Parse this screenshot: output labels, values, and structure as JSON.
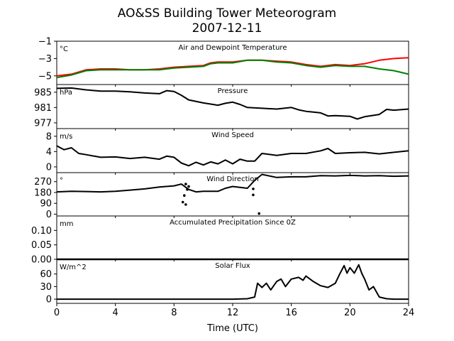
{
  "chart_data": {
    "type": "line",
    "title": "AO&SS Building Tower Meteorogram",
    "subtitle": "2007-12-11",
    "xlabel": "Time (UTC)",
    "x_range": [
      0,
      24
    ],
    "x_ticks": [
      0,
      4,
      8,
      12,
      16,
      20,
      24
    ],
    "grid": false,
    "panels": [
      {
        "key": "temp",
        "title": "Air and Dewpoint Temperature",
        "unit": "°C",
        "ylim": [
          -6.0,
          -1.0
        ],
        "y_ticks": [
          -5,
          -3,
          -1
        ],
        "y_tick_labels": [
          "−5",
          "−3",
          "−1"
        ],
        "series": [
          {
            "color": "#ff0000",
            "points": [
              [
                0,
                -5.0
              ],
              [
                1,
                -4.8
              ],
              [
                2,
                -4.3
              ],
              [
                3,
                -4.2
              ],
              [
                4,
                -4.2
              ],
              [
                5,
                -4.3
              ],
              [
                6,
                -4.3
              ],
              [
                7,
                -4.2
              ],
              [
                8,
                -4.0
              ],
              [
                9,
                -3.9
              ],
              [
                10,
                -3.8
              ],
              [
                10.5,
                -3.5
              ],
              [
                11,
                -3.4
              ],
              [
                12,
                -3.4
              ],
              [
                13,
                -3.2
              ],
              [
                14,
                -3.2
              ],
              [
                15,
                -3.3
              ],
              [
                16,
                -3.4
              ],
              [
                17,
                -3.7
              ],
              [
                18,
                -3.9
              ],
              [
                19,
                -3.7
              ],
              [
                20,
                -3.8
              ],
              [
                21,
                -3.6
              ],
              [
                22,
                -3.2
              ],
              [
                23,
                -3.0
              ],
              [
                24,
                -2.9
              ]
            ]
          },
          {
            "color": "#008000",
            "points": [
              [
                0,
                -5.2
              ],
              [
                1,
                -4.9
              ],
              [
                2,
                -4.4
              ],
              [
                3,
                -4.3
              ],
              [
                4,
                -4.3
              ],
              [
                5,
                -4.3
              ],
              [
                6,
                -4.3
              ],
              [
                7,
                -4.3
              ],
              [
                8,
                -4.1
              ],
              [
                9,
                -4.0
              ],
              [
                10,
                -3.9
              ],
              [
                10.5,
                -3.6
              ],
              [
                11,
                -3.5
              ],
              [
                12,
                -3.5
              ],
              [
                13,
                -3.2
              ],
              [
                14,
                -3.2
              ],
              [
                15,
                -3.4
              ],
              [
                16,
                -3.5
              ],
              [
                17,
                -3.8
              ],
              [
                18,
                -4.0
              ],
              [
                19,
                -3.8
              ],
              [
                20,
                -3.9
              ],
              [
                21,
                -3.9
              ],
              [
                22,
                -4.2
              ],
              [
                23,
                -4.4
              ],
              [
                24,
                -4.8
              ]
            ]
          }
        ]
      },
      {
        "key": "pressure",
        "title": "Pressure",
        "unit": "hPa",
        "ylim": [
          975.5,
          987.0
        ],
        "y_ticks": [
          977,
          981,
          985
        ],
        "y_tick_labels": [
          "977",
          "981",
          "985"
        ],
        "series": [
          {
            "color": "#000000",
            "points": [
              [
                0,
                986.0
              ],
              [
                1,
                986.1
              ],
              [
                2,
                985.6
              ],
              [
                3,
                985.3
              ],
              [
                4,
                985.3
              ],
              [
                5,
                985.1
              ],
              [
                6,
                984.8
              ],
              [
                7,
                984.6
              ],
              [
                7.5,
                985.4
              ],
              [
                8,
                985.2
              ],
              [
                8.5,
                984.2
              ],
              [
                9,
                983.0
              ],
              [
                10,
                982.2
              ],
              [
                11,
                981.6
              ],
              [
                11.5,
                982.1
              ],
              [
                12,
                982.4
              ],
              [
                12.5,
                981.8
              ],
              [
                13,
                981.0
              ],
              [
                14,
                980.8
              ],
              [
                15,
                980.6
              ],
              [
                16,
                981.0
              ],
              [
                16.5,
                980.4
              ],
              [
                17,
                980.0
              ],
              [
                17.5,
                979.8
              ],
              [
                18,
                979.6
              ],
              [
                18.5,
                978.8
              ],
              [
                19,
                978.9
              ],
              [
                20,
                978.7
              ],
              [
                20.5,
                978.0
              ],
              [
                21,
                978.6
              ],
              [
                22,
                979.2
              ],
              [
                22.5,
                980.5
              ],
              [
                23,
                980.3
              ],
              [
                24,
                980.6
              ]
            ]
          }
        ]
      },
      {
        "key": "wind_speed",
        "title": "Wind Speed",
        "unit": "m/s",
        "ylim": [
          -1.5,
          10.0
        ],
        "y_ticks": [
          0,
          4,
          8
        ],
        "y_tick_labels": [
          "0",
          "4",
          "8"
        ],
        "series": [
          {
            "color": "#000000",
            "points": [
              [
                0,
                5.5
              ],
              [
                0.5,
                4.5
              ],
              [
                1,
                5.0
              ],
              [
                1.5,
                3.5
              ],
              [
                2,
                3.2
              ],
              [
                3,
                2.5
              ],
              [
                4,
                2.6
              ],
              [
                5,
                2.2
              ],
              [
                6,
                2.5
              ],
              [
                7,
                2.0
              ],
              [
                7.5,
                2.8
              ],
              [
                8,
                2.5
              ],
              [
                8.5,
                1.0
              ],
              [
                9,
                0.3
              ],
              [
                9.5,
                1.2
              ],
              [
                10,
                0.5
              ],
              [
                10.5,
                1.3
              ],
              [
                11,
                0.8
              ],
              [
                11.5,
                1.8
              ],
              [
                12,
                0.8
              ],
              [
                12.5,
                2.0
              ],
              [
                13,
                1.5
              ],
              [
                13.5,
                1.5
              ],
              [
                14,
                3.5
              ],
              [
                15,
                3.0
              ],
              [
                16,
                3.5
              ],
              [
                17,
                3.5
              ],
              [
                18,
                4.2
              ],
              [
                18.5,
                4.8
              ],
              [
                19,
                3.5
              ],
              [
                20,
                3.7
              ],
              [
                21,
                3.8
              ],
              [
                22,
                3.4
              ],
              [
                23,
                3.8
              ],
              [
                24,
                4.2
              ]
            ]
          }
        ]
      },
      {
        "key": "wind_direction",
        "title": "Wind Direction",
        "unit": "°",
        "ylim": [
          -15,
          345
        ],
        "y_ticks": [
          0,
          90,
          180,
          270
        ],
        "y_tick_labels": [
          "0",
          "90",
          "180",
          "270"
        ],
        "series": [
          {
            "color": "#000000",
            "points": [
              [
                0,
                185
              ],
              [
                1,
                190
              ],
              [
                2,
                188
              ],
              [
                3,
                185
              ],
              [
                4,
                190
              ],
              [
                5,
                200
              ],
              [
                6,
                210
              ],
              [
                7,
                225
              ],
              [
                8,
                235
              ],
              [
                8.5,
                250
              ],
              [
                9,
                205
              ],
              [
                9.5,
                185
              ],
              [
                10,
                190
              ],
              [
                11,
                190
              ],
              [
                11.5,
                215
              ],
              [
                12,
                230
              ],
              [
                13,
                215
              ],
              [
                13.5,
                280
              ],
              [
                14,
                330
              ],
              [
                15,
                305
              ],
              [
                16,
                310
              ],
              [
                17,
                310
              ],
              [
                18,
                320
              ],
              [
                19,
                318
              ],
              [
                20,
                322
              ],
              [
                21,
                318
              ],
              [
                22,
                320
              ],
              [
                23,
                315
              ],
              [
                24,
                318
              ]
            ]
          }
        ],
        "scatter": [
          [
            8.6,
            100
          ],
          [
            8.8,
            80
          ],
          [
            8.7,
            155
          ],
          [
            8.9,
            205
          ],
          [
            9.0,
            230
          ],
          [
            8.8,
            250
          ],
          [
            13.4,
            160
          ],
          [
            13.4,
            210
          ],
          [
            13.8,
            5
          ]
        ]
      },
      {
        "key": "precip",
        "title": "Accumulated Precipitation Since 0Z",
        "unit": "mm",
        "ylim": [
          0.0,
          0.15
        ],
        "y_ticks": [
          0.0,
          0.05,
          0.1
        ],
        "y_tick_labels": [
          "0.00",
          "0.05",
          "0.10"
        ],
        "series": [
          {
            "color": "#000000",
            "points": [
              [
                0,
                0.0
              ],
              [
                24,
                0.0
              ]
            ]
          }
        ]
      },
      {
        "key": "solar",
        "title": "Solar Flux",
        "unit": "W/m^2",
        "ylim": [
          -10,
          95
        ],
        "y_ticks": [
          0,
          30,
          60
        ],
        "y_tick_labels": [
          "0",
          "30",
          "60"
        ],
        "series": [
          {
            "color": "#000000",
            "points": [
              [
                0,
                0
              ],
              [
                12,
                0
              ],
              [
                13,
                1
              ],
              [
                13.5,
                5
              ],
              [
                13.7,
                38
              ],
              [
                14,
                28
              ],
              [
                14.3,
                38
              ],
              [
                14.6,
                22
              ],
              [
                15,
                42
              ],
              [
                15.3,
                48
              ],
              [
                15.6,
                30
              ],
              [
                16,
                48
              ],
              [
                16.5,
                52
              ],
              [
                16.8,
                45
              ],
              [
                17,
                55
              ],
              [
                17.5,
                42
              ],
              [
                18,
                32
              ],
              [
                18.5,
                28
              ],
              [
                19,
                38
              ],
              [
                19.3,
                60
              ],
              [
                19.6,
                80
              ],
              [
                19.8,
                62
              ],
              [
                20,
                75
              ],
              [
                20.3,
                62
              ],
              [
                20.6,
                82
              ],
              [
                20.8,
                62
              ],
              [
                21,
                48
              ],
              [
                21.3,
                22
              ],
              [
                21.6,
                30
              ],
              [
                22,
                5
              ],
              [
                22.5,
                1
              ],
              [
                23,
                0
              ],
              [
                24,
                0
              ]
            ]
          }
        ]
      }
    ]
  }
}
